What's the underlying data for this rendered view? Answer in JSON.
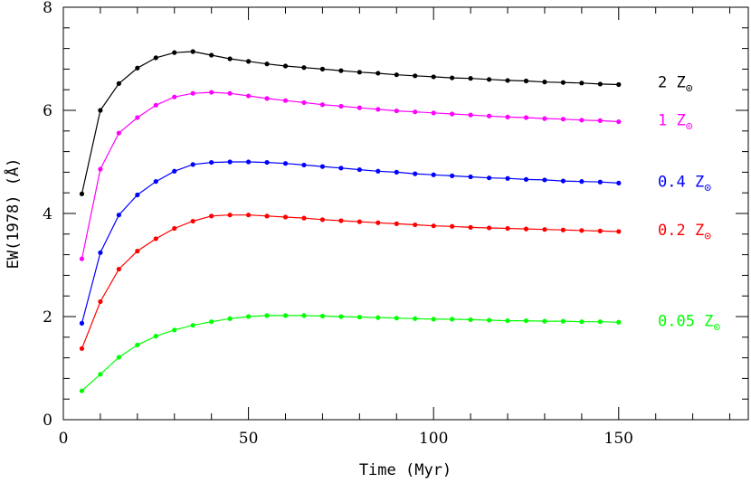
{
  "chart_data": {
    "type": "line",
    "xlabel": "Time (Myr)",
    "ylabel": "EW(1978) (Å)",
    "xlim": [
      0,
      185
    ],
    "ylim": [
      0,
      8
    ],
    "xticks": [
      0,
      50,
      100,
      150
    ],
    "yticks": [
      0,
      2,
      4,
      6,
      8
    ],
    "x": [
      5,
      10,
      15,
      20,
      25,
      30,
      35,
      40,
      45,
      50,
      55,
      60,
      65,
      70,
      75,
      80,
      85,
      90,
      95,
      100,
      105,
      110,
      115,
      120,
      125,
      130,
      135,
      140,
      145,
      150
    ],
    "series": [
      {
        "name": "2 Z",
        "subscript": "⊙",
        "color": "#000000",
        "values": [
          4.38,
          6.0,
          6.52,
          6.82,
          7.02,
          7.12,
          7.14,
          7.07,
          7.0,
          6.95,
          6.9,
          6.86,
          6.83,
          6.8,
          6.77,
          6.74,
          6.72,
          6.69,
          6.67,
          6.65,
          6.63,
          6.62,
          6.6,
          6.58,
          6.57,
          6.55,
          6.54,
          6.53,
          6.51,
          6.5
        ]
      },
      {
        "name": "1 Z",
        "subscript": "⊙",
        "color": "#ff00ff",
        "values": [
          3.12,
          4.86,
          5.56,
          5.86,
          6.1,
          6.26,
          6.33,
          6.35,
          6.33,
          6.28,
          6.23,
          6.19,
          6.15,
          6.11,
          6.08,
          6.05,
          6.02,
          5.99,
          5.97,
          5.95,
          5.93,
          5.91,
          5.89,
          5.87,
          5.86,
          5.84,
          5.83,
          5.81,
          5.8,
          5.78
        ]
      },
      {
        "name": "0.4 Z",
        "subscript": "⊙",
        "color": "#0000ff",
        "values": [
          1.87,
          3.24,
          3.97,
          4.36,
          4.62,
          4.82,
          4.95,
          4.99,
          5.0,
          5.0,
          4.99,
          4.97,
          4.94,
          4.91,
          4.88,
          4.85,
          4.82,
          4.8,
          4.77,
          4.75,
          4.73,
          4.71,
          4.69,
          4.68,
          4.66,
          4.65,
          4.63,
          4.62,
          4.61,
          4.59
        ]
      },
      {
        "name": "0.2 Z",
        "subscript": "⊙",
        "color": "#ff0000",
        "values": [
          1.38,
          2.29,
          2.92,
          3.27,
          3.51,
          3.71,
          3.85,
          3.95,
          3.97,
          3.97,
          3.95,
          3.93,
          3.91,
          3.88,
          3.86,
          3.84,
          3.82,
          3.8,
          3.78,
          3.76,
          3.75,
          3.73,
          3.72,
          3.71,
          3.7,
          3.69,
          3.68,
          3.67,
          3.66,
          3.65
        ]
      },
      {
        "name": "0.05 Z",
        "subscript": "⊙",
        "color": "#00ff00",
        "values": [
          0.56,
          0.88,
          1.21,
          1.45,
          1.62,
          1.74,
          1.83,
          1.9,
          1.96,
          2.0,
          2.02,
          2.02,
          2.02,
          2.01,
          2.0,
          1.99,
          1.98,
          1.97,
          1.96,
          1.95,
          1.95,
          1.94,
          1.93,
          1.92,
          1.92,
          1.91,
          1.91,
          1.9,
          1.9,
          1.89
        ]
      }
    ]
  }
}
